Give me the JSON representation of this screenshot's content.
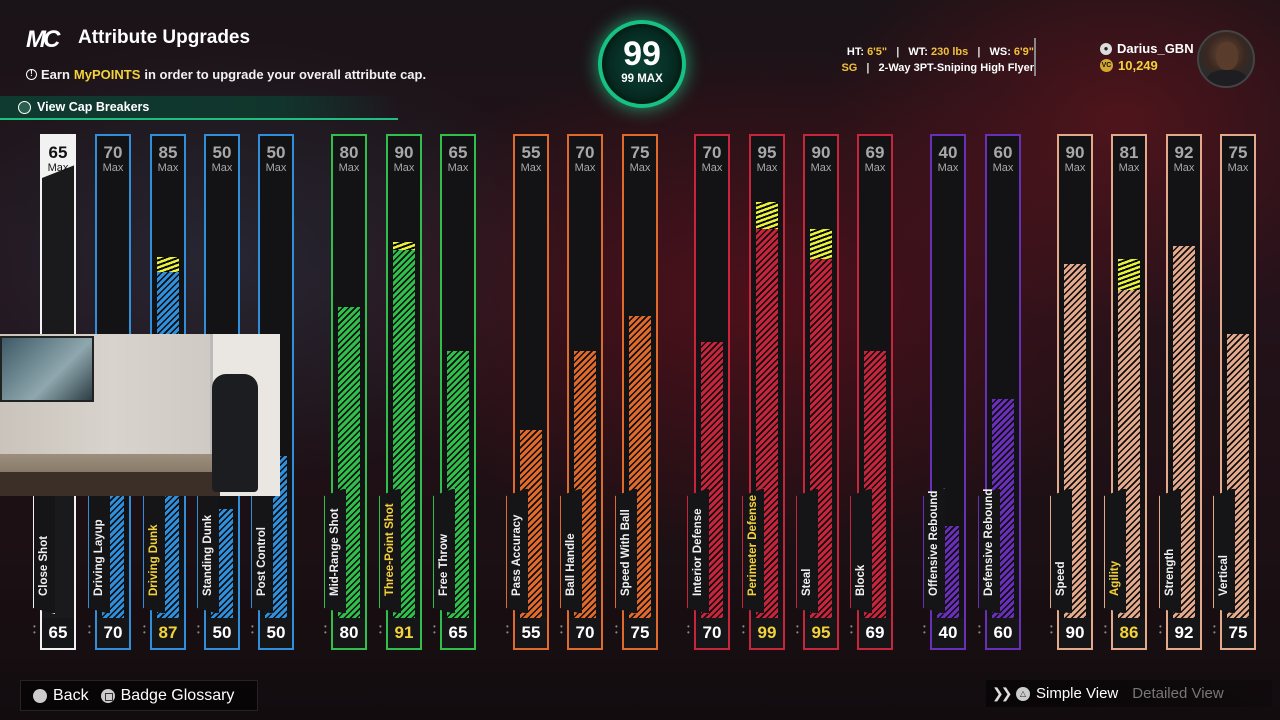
{
  "header": {
    "logo": "MC",
    "title": "Attribute Upgrades",
    "subtitle_pre": "Earn",
    "subtitle_highlight": "MyPOINTS",
    "subtitle_post": "in order to upgrade your overall attribute cap.",
    "cap_breakers": "View Cap Breakers"
  },
  "overall": {
    "value": "99",
    "label": "99 MAX"
  },
  "player": {
    "ht_label": "HT:",
    "ht": "6'5\"",
    "wt_label": "WT:",
    "wt": "230 lbs",
    "ws_label": "WS:",
    "ws": "6'9\"",
    "position": "SG",
    "archetype": "2-Way 3PT-Sniping High Flyer",
    "name": "Darius_GBN",
    "vc": "10,249",
    "separator": "|"
  },
  "attributes": [
    {
      "name": "Close Shot",
      "max": 65,
      "current": 65,
      "color": "#f2f2f2",
      "fill": 0,
      "boost": 0,
      "white": true,
      "upgraded": false
    },
    {
      "name": "Driving Layup",
      "max": 70,
      "current": 70,
      "color": "#2f8fdb",
      "fill": 0.28,
      "boost": 0,
      "upgraded": false
    },
    {
      "name": "Driving Dunk",
      "max": 85,
      "current": 87,
      "color": "#2f8fdb",
      "fill": 0.78,
      "boost": 0.035,
      "upgraded": true
    },
    {
      "name": "Standing Dunk",
      "max": 50,
      "current": 50,
      "color": "#2f8fdb",
      "fill": 0.24,
      "boost": 0,
      "upgraded": false
    },
    {
      "name": "Post Control",
      "max": 50,
      "current": 50,
      "color": "#2f8fdb",
      "fill": 0.36,
      "boost": 0,
      "upgraded": false
    },
    {
      "name": "Mid-Range Shot",
      "max": 80,
      "current": 80,
      "color": "#2fbf4a",
      "fill": 0.7,
      "boost": 0,
      "upgraded": false
    },
    {
      "name": "Three-Point Shot",
      "max": 90,
      "current": 91,
      "color": "#2fbf4a",
      "fill": 0.83,
      "boost": 0.02,
      "upgraded": true
    },
    {
      "name": "Free Throw",
      "max": 65,
      "current": 65,
      "color": "#2fbf4a",
      "fill": 0.6,
      "boost": 0,
      "upgraded": false
    },
    {
      "name": "Pass Accuracy",
      "max": 55,
      "current": 55,
      "color": "#e06a2c",
      "fill": 0.42,
      "boost": 0,
      "upgraded": false
    },
    {
      "name": "Ball Handle",
      "max": 70,
      "current": 70,
      "color": "#e06a2c",
      "fill": 0.6,
      "boost": 0,
      "upgraded": false
    },
    {
      "name": "Speed With Ball",
      "max": 75,
      "current": 75,
      "color": "#e06a2c",
      "fill": 0.68,
      "boost": 0,
      "upgraded": false
    },
    {
      "name": "Interior Defense",
      "max": 70,
      "current": 70,
      "color": "#c8253c",
      "fill": 0.62,
      "boost": 0,
      "upgraded": false
    },
    {
      "name": "Perimeter Defense",
      "max": 95,
      "current": 99,
      "color": "#c8253c",
      "fill": 0.88,
      "boost": 0.06,
      "upgraded": true
    },
    {
      "name": "Steal",
      "max": 90,
      "current": 95,
      "color": "#c8253c",
      "fill": 0.81,
      "boost": 0.07,
      "upgraded": false
    },
    {
      "name": "Block",
      "max": 69,
      "current": 69,
      "color": "#c8253c",
      "fill": 0.6,
      "boost": 0,
      "upgraded": false
    },
    {
      "name": "Offensive Rebound",
      "max": 40,
      "current": 40,
      "color": "#6a2fb8",
      "fill": 0.2,
      "boost": 0,
      "upgraded": false
    },
    {
      "name": "Defensive Rebound",
      "max": 60,
      "current": 60,
      "color": "#6a2fb8",
      "fill": 0.49,
      "boost": 0,
      "upgraded": false
    },
    {
      "name": "Speed",
      "max": 90,
      "current": 90,
      "color": "#e3a98a",
      "fill": 0.8,
      "boost": 0,
      "upgraded": false
    },
    {
      "name": "Agility",
      "max": 81,
      "current": 86,
      "color": "#e3a98a",
      "fill": 0.74,
      "boost": 0.07,
      "upgraded": true
    },
    {
      "name": "Strength",
      "max": 92,
      "current": 92,
      "color": "#e3a98a",
      "fill": 0.84,
      "boost": 0,
      "upgraded": false
    },
    {
      "name": "Vertical",
      "max": 75,
      "current": 75,
      "color": "#e3a98a",
      "fill": 0.64,
      "boost": 0,
      "upgraded": false
    }
  ],
  "max_label": "Max",
  "footer": {
    "back": "Back",
    "glossary": "Badge Glossary",
    "simple": "Simple View",
    "detailed": "Detailed View"
  }
}
